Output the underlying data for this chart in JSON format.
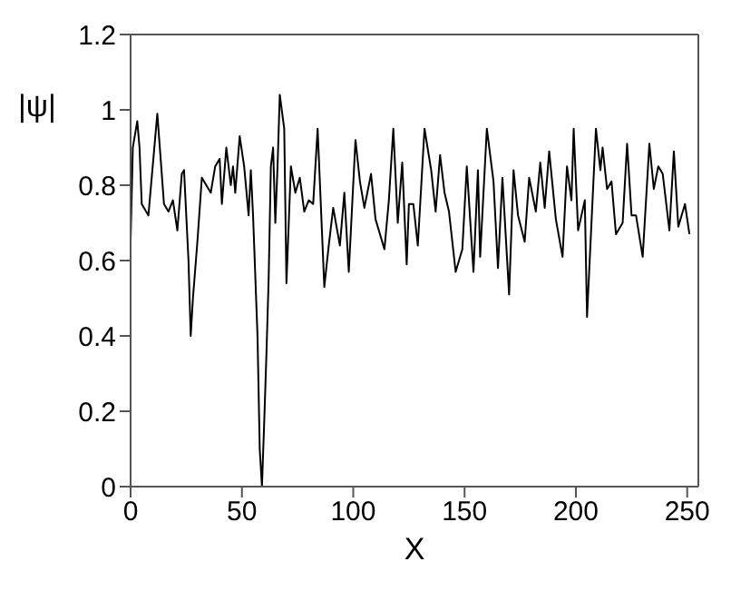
{
  "chart_data": {
    "type": "line",
    "xlabel": "X",
    "ylabel": "|ψ|",
    "x": [
      0,
      1,
      3,
      4,
      5,
      8,
      12,
      15,
      17,
      19,
      21,
      23,
      24,
      26,
      27,
      28,
      30,
      32,
      34,
      36,
      38,
      40,
      41,
      43,
      45,
      46,
      47,
      49,
      51,
      53,
      54,
      55,
      57,
      58,
      59,
      60,
      61,
      62,
      63,
      64,
      65,
      66,
      67,
      69,
      70,
      72,
      74,
      76,
      78,
      80,
      82,
      84,
      87,
      89,
      91,
      94,
      96,
      98,
      101,
      103,
      105,
      108,
      110,
      114,
      116,
      118,
      120,
      122,
      124,
      125,
      127,
      129,
      132,
      135,
      137,
      139,
      141,
      143,
      146,
      149,
      151,
      154,
      156,
      157,
      160,
      163,
      165,
      167,
      170,
      172,
      174,
      177,
      179,
      182,
      184,
      186,
      188,
      191,
      194,
      196,
      198,
      199,
      201,
      204,
      205,
      209,
      211,
      212,
      214,
      216,
      218,
      221,
      223,
      225,
      227,
      230,
      233,
      235,
      237,
      239,
      242,
      244,
      246,
      249,
      251
    ],
    "series": [
      {
        "color": "#000000",
        "values": [
          0.65,
          0.9,
          0.97,
          0.9,
          0.75,
          0.72,
          0.99,
          0.75,
          0.73,
          0.76,
          0.68,
          0.83,
          0.84,
          0.6,
          0.4,
          0.5,
          0.65,
          0.82,
          0.8,
          0.78,
          0.85,
          0.87,
          0.75,
          0.9,
          0.8,
          0.85,
          0.78,
          0.93,
          0.85,
          0.72,
          0.84,
          0.72,
          0.4,
          0.1,
          0,
          0.17,
          0.35,
          0.55,
          0.85,
          0.9,
          0.7,
          0.85,
          1.04,
          0.95,
          0.54,
          0.85,
          0.78,
          0.82,
          0.73,
          0.76,
          0.75,
          0.95,
          0.53,
          0.64,
          0.74,
          0.64,
          0.78,
          0.57,
          0.92,
          0.81,
          0.74,
          0.83,
          0.71,
          0.63,
          0.76,
          0.95,
          0.7,
          0.86,
          0.59,
          0.75,
          0.75,
          0.64,
          0.95,
          0.84,
          0.73,
          0.88,
          0.78,
          0.73,
          0.57,
          0.63,
          0.85,
          0.57,
          0.84,
          0.61,
          0.95,
          0.81,
          0.58,
          0.82,
          0.51,
          0.84,
          0.72,
          0.65,
          0.82,
          0.73,
          0.86,
          0.74,
          0.89,
          0.71,
          0.61,
          0.85,
          0.76,
          0.95,
          0.68,
          0.76,
          0.45,
          0.95,
          0.84,
          0.9,
          0.79,
          0.81,
          0.67,
          0.7,
          0.91,
          0.72,
          0.72,
          0.61,
          0.91,
          0.79,
          0.85,
          0.83,
          0.68,
          0.89,
          0.69,
          0.75,
          0.67
        ]
      }
    ],
    "xlim": [
      0,
      255
    ],
    "xticks": [
      0,
      50,
      100,
      150,
      200,
      250
    ],
    "ylim": [
      0,
      1.2
    ],
    "yticks": [
      0,
      0.2,
      0.4,
      0.6,
      0.8,
      1,
      1.2
    ],
    "marker": "none",
    "line_style": "solid",
    "grid": false,
    "legend": false
  }
}
